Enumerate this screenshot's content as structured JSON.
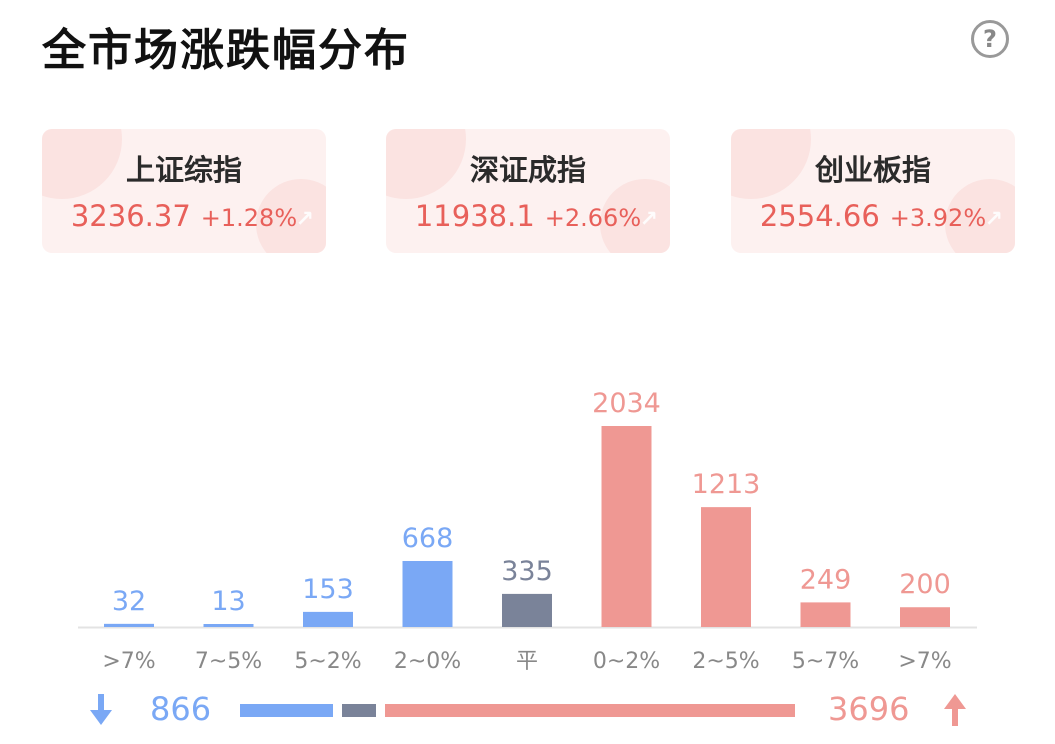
{
  "title": "全市场涨跌幅分布",
  "help_glyph": "?",
  "indices": [
    {
      "name": "上证综指",
      "value": "3236.37",
      "change": "+1.28%"
    },
    {
      "name": "深证成指",
      "value": "11938.1",
      "change": "+2.66%"
    },
    {
      "name": "创业板指",
      "value": "2554.66",
      "change": "+3.92%"
    }
  ],
  "colors": {
    "down": "#7aa8f5",
    "flat": "#7a8399",
    "up": "#ef9893",
    "up_text": "#e8605a"
  },
  "chart_data": {
    "type": "bar",
    "categories": [
      ">7%",
      "7~5%",
      "5~2%",
      "2~0%",
      "平",
      "0~2%",
      "2~5%",
      "5~7%",
      ">7%"
    ],
    "values": [
      32,
      13,
      153,
      668,
      335,
      2034,
      1213,
      249,
      200
    ],
    "groups": [
      "down",
      "down",
      "down",
      "down",
      "flat",
      "up",
      "up",
      "up",
      "up"
    ],
    "title": "",
    "xlabel": "",
    "ylabel": ""
  },
  "summary": {
    "down_total": "866",
    "up_total": "3696",
    "flat_total": 335
  }
}
